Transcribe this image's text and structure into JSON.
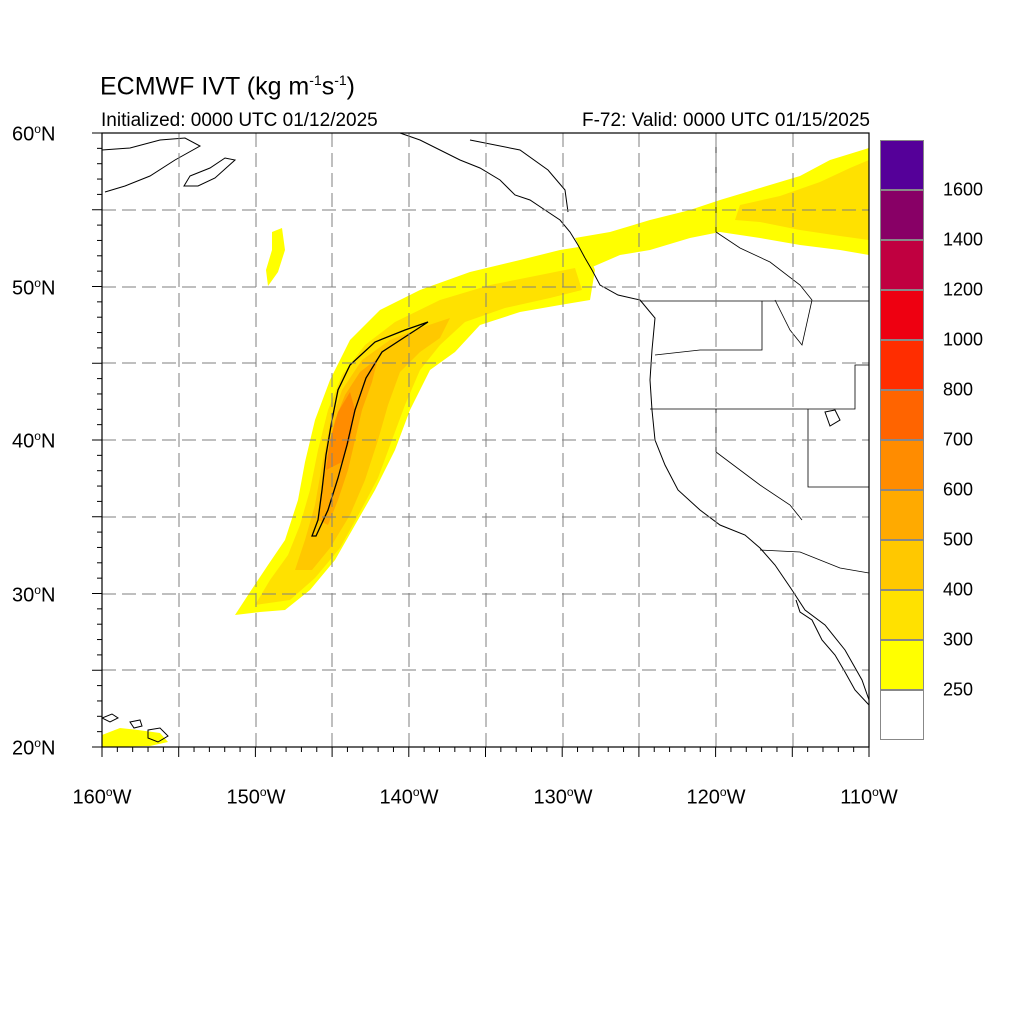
{
  "header": {
    "title_main": "ECMWF IVT (kg m",
    "title_exp1": "-1",
    "title_mid": "s",
    "title_exp2": "-1",
    "title_end": ")",
    "init_text": "Initialized: 0000 UTC 01/12/2025",
    "valid_text": "F-72: Valid: 0000 UTC 01/15/2025"
  },
  "axes": {
    "lat_labels": [
      {
        "num": "60",
        "dir": "N"
      },
      {
        "num": "50",
        "dir": "N"
      },
      {
        "num": "40",
        "dir": "N"
      },
      {
        "num": "30",
        "dir": "N"
      },
      {
        "num": "20",
        "dir": "N"
      }
    ],
    "lon_labels": [
      {
        "num": "160",
        "dir": "W"
      },
      {
        "num": "150",
        "dir": "W"
      },
      {
        "num": "140",
        "dir": "W"
      },
      {
        "num": "130",
        "dir": "W"
      },
      {
        "num": "120",
        "dir": "W"
      },
      {
        "num": "110",
        "dir": "W"
      }
    ],
    "lat_range": [
      20,
      60
    ],
    "lon_range": [
      -160,
      -110
    ]
  },
  "colorbar": {
    "labels": [
      "250",
      "300",
      "400",
      "500",
      "600",
      "700",
      "800",
      "1000",
      "1200",
      "1400",
      "1600"
    ],
    "colors": [
      "#ffffff",
      "#ffff00",
      "#ffe100",
      "#ffc800",
      "#ffaa00",
      "#ff8c00",
      "#ff6400",
      "#ff2d00",
      "#ee0011",
      "#c00040",
      "#880066",
      "#550099"
    ]
  },
  "map": {
    "land_fill": "#ffffff",
    "ivt_low": "#ffff00",
    "ivt_mid": "#ffe100",
    "ivt_high": "#ffc800",
    "ivt_peak": "#ff8c00"
  }
}
